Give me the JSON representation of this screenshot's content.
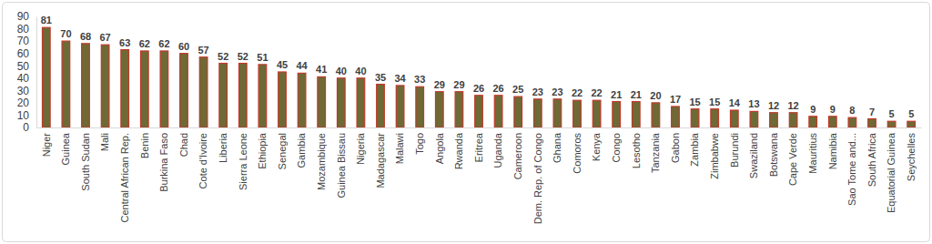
{
  "chart_data": {
    "type": "bar",
    "categories": [
      "Niger",
      "Guinea",
      "South Sudan",
      "Mali",
      "Central African Rep.",
      "Benin",
      "Burkina Faso",
      "Chad",
      "Cote d'Ivoire",
      "Liberia",
      "Sierra Leone",
      "Ethiopia",
      "Senegal",
      "Gambia",
      "Mozambique",
      "Guinea Bissau",
      "Nigeria",
      "Madagascar",
      "Malawi",
      "Togo",
      "Angola",
      "Rwanda",
      "Eritrea",
      "Uganda",
      "Cameroon",
      "Dem. Rep. of Congo",
      "Ghana",
      "Comoros",
      "Kenya",
      "Congo",
      "Lesotho",
      "Tanzania",
      "Gabon",
      "Zambia",
      "Zimbabwe",
      "Burundi",
      "Swaziland",
      "Botswana",
      "Cape Verde",
      "Mauritius",
      "Namibia",
      "Sao Tome and...",
      "South Africa",
      "Equatorial Guinea",
      "Seychelles"
    ],
    "values": [
      81,
      70,
      68,
      67,
      63,
      62,
      62,
      60,
      57,
      52,
      52,
      51,
      45,
      44,
      41,
      40,
      40,
      35,
      34,
      33,
      29,
      29,
      26,
      26,
      25,
      23,
      23,
      22,
      22,
      21,
      21,
      20,
      17,
      15,
      15,
      14,
      13,
      12,
      12,
      9,
      9,
      8,
      7,
      5,
      5
    ],
    "color": "#6e6a35",
    "ylim": [
      0,
      90
    ],
    "yticks": [
      0,
      10,
      20,
      30,
      40,
      50,
      60,
      70,
      80,
      90
    ],
    "grid": false,
    "data_labels": true
  }
}
